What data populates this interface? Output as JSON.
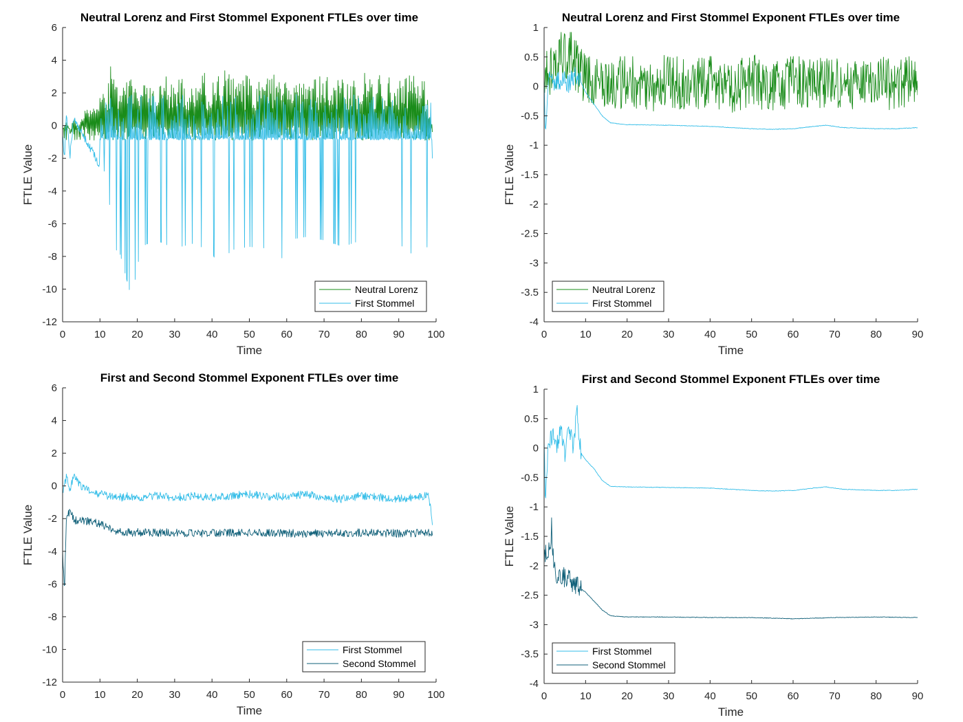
{
  "window": {
    "title": ""
  },
  "colors": {
    "neutral_lorenz": "#1a8c1a",
    "first_stommel": "#33bde8",
    "second_stommel": "#0f5f78",
    "axis": "#262626"
  },
  "chart_data": [
    {
      "type": "line",
      "title": "Neutral Lorenz and First Stommel Exponent FTLEs over time",
      "xlabel": "Time",
      "ylabel": "FTLE Value",
      "xlim": [
        0,
        100
      ],
      "ylim": [
        -12,
        6
      ],
      "xticks": [
        0,
        10,
        20,
        30,
        40,
        50,
        60,
        70,
        80,
        90,
        100
      ],
      "yticks": [
        -12,
        -10,
        -8,
        -6,
        -4,
        -2,
        0,
        2,
        4,
        6
      ],
      "legend_position": "bottom-right",
      "grid": false,
      "series": [
        {
          "name": "Neutral Lorenz",
          "color": "#1a8c1a",
          "x": [
            0,
            1,
            2,
            3,
            4,
            6,
            8,
            10,
            12,
            13.2,
            14,
            16,
            18,
            20,
            22,
            25,
            27,
            30,
            33,
            35,
            38,
            40,
            43,
            46,
            50,
            53,
            56,
            59,
            62,
            64,
            68,
            72,
            76,
            80,
            82.5,
            83,
            86,
            90,
            94,
            97,
            99
          ],
          "y": [
            -0.5,
            0.4,
            -0.6,
            0.7,
            -0.3,
            0.9,
            1.2,
            1.8,
            2.2,
            4.3,
            2.6,
            2.7,
            3.1,
            2.2,
            3.0,
            2.5,
            3.6,
            2.8,
            3.3,
            2.6,
            3.4,
            2.7,
            3.5,
            3.0,
            3.2,
            2.8,
            3.2,
            3.3,
            3.0,
            2.5,
            3.2,
            2.9,
            3.1,
            3.0,
            4.6,
            3.3,
            3.1,
            2.8,
            3.2,
            2.8,
            -0.1
          ]
        },
        {
          "name": "First Stommel",
          "color": "#33bde8",
          "x": [
            0,
            0.3,
            0.5,
            1,
            2,
            3,
            5,
            8,
            10,
            12,
            13.5,
            15,
            18.5,
            21,
            25,
            30,
            35,
            40,
            42,
            45,
            50,
            55,
            58,
            60,
            65,
            70,
            75,
            80,
            85,
            90,
            92,
            95,
            98,
            99
          ],
          "y": [
            -5.2,
            -1.2,
            -2.0,
            0.6,
            -1.8,
            0.5,
            -0.4,
            -1.6,
            -2.5,
            -3.0,
            -7.8,
            -7.5,
            -10.6,
            -7.4,
            -7.0,
            -7.5,
            -7.2,
            -7.7,
            -8.9,
            -7.6,
            -7.4,
            -7.5,
            -8.7,
            -7.0,
            -6.8,
            -7.0,
            -7.4,
            -7.0,
            -7.2,
            -6.6,
            -8.4,
            -7.0,
            -7.5,
            -2.2
          ]
        }
      ]
    },
    {
      "type": "line",
      "title": "Neutral Lorenz and First Stommel Exponent FTLEs over time",
      "xlabel": "Time",
      "ylabel": "FTLE Value",
      "xlim": [
        0,
        90
      ],
      "ylim": [
        -4,
        1
      ],
      "xticks": [
        0,
        10,
        20,
        30,
        40,
        50,
        60,
        70,
        80,
        90
      ],
      "yticks": [
        -4,
        -3.5,
        -3,
        -2.5,
        -2,
        -1.5,
        -1,
        -0.5,
        0,
        0.5,
        1
      ],
      "legend_position": "bottom-left",
      "grid": false,
      "series": [
        {
          "name": "Neutral Lorenz",
          "color": "#1a8c1a",
          "x": [
            0,
            2,
            4,
            6,
            8,
            10,
            15,
            20,
            25,
            30,
            35,
            40,
            42,
            45,
            50,
            55,
            60,
            65,
            70,
            75,
            80,
            85,
            90
          ],
          "y": [
            0.2,
            0.3,
            0.5,
            0.6,
            0.3,
            0.1,
            0.0,
            0.1,
            0.0,
            0.1,
            0.0,
            0.1,
            -0.1,
            0.0,
            0.1,
            0.0,
            0.1,
            0.0,
            0.1,
            0.0,
            0.1,
            0.0,
            0.1
          ]
        },
        {
          "name": "First Stommel",
          "color": "#33bde8",
          "x": [
            0,
            0.3,
            1,
            2,
            4,
            6,
            8,
            9,
            10,
            12,
            14,
            16,
            20,
            30,
            40,
            50,
            55,
            60,
            65,
            68,
            72,
            80,
            85,
            90
          ],
          "y": [
            0.1,
            -0.8,
            0.1,
            0.05,
            0.1,
            0.05,
            0.2,
            0.05,
            -0.1,
            -0.3,
            -0.5,
            -0.62,
            -0.65,
            -0.66,
            -0.68,
            -0.72,
            -0.73,
            -0.72,
            -0.68,
            -0.66,
            -0.7,
            -0.72,
            -0.72,
            -0.7
          ]
        }
      ]
    },
    {
      "type": "line",
      "title": "First and Second Stommel Exponent FTLEs over time",
      "xlabel": "Time",
      "ylabel": "FTLE Value",
      "xlim": [
        0,
        100
      ],
      "ylim": [
        -12,
        6
      ],
      "xticks": [
        0,
        10,
        20,
        30,
        40,
        50,
        60,
        70,
        80,
        90,
        100
      ],
      "yticks": [
        -12,
        -10,
        -8,
        -6,
        -4,
        -2,
        0,
        2,
        4,
        6
      ],
      "legend_position": "bottom-right",
      "grid": false,
      "series": [
        {
          "name": "First Stommel",
          "color": "#33bde8",
          "x": [
            0,
            1,
            2,
            3,
            5,
            8,
            10,
            12,
            14,
            16,
            18,
            20,
            25,
            30,
            35,
            40,
            45,
            50,
            55,
            60,
            65,
            70,
            75,
            80,
            85,
            90,
            95,
            98,
            99
          ],
          "y": [
            -0.5,
            0.5,
            -0.2,
            0.6,
            0.0,
            -0.4,
            -0.5,
            -0.6,
            -0.7,
            -0.7,
            -0.6,
            -0.7,
            -0.6,
            -0.7,
            -0.6,
            -0.7,
            -0.6,
            -0.5,
            -0.7,
            -0.6,
            -0.5,
            -0.7,
            -0.8,
            -0.6,
            -0.7,
            -0.8,
            -0.7,
            -0.6,
            -2.2
          ]
        },
        {
          "name": "Second Stommel",
          "color": "#0f5f78",
          "x": [
            0,
            0.5,
            1,
            2,
            3,
            5,
            8,
            10,
            12,
            15,
            18,
            20,
            30,
            40,
            50,
            60,
            70,
            80,
            90,
            99
          ],
          "y": [
            -4.0,
            -6.5,
            -2.0,
            -1.5,
            -2.1,
            -2.1,
            -2.2,
            -2.3,
            -2.6,
            -2.8,
            -2.85,
            -2.85,
            -2.85,
            -2.9,
            -2.85,
            -2.9,
            -2.9,
            -2.85,
            -2.9,
            -2.85
          ]
        }
      ]
    },
    {
      "type": "line",
      "title": "First and Second Stommel Exponent FTLEs over time",
      "xlabel": "Time",
      "ylabel": "FTLE Value",
      "xlim": [
        0,
        90
      ],
      "ylim": [
        -4,
        1
      ],
      "xticks": [
        0,
        10,
        20,
        30,
        40,
        50,
        60,
        70,
        80,
        90
      ],
      "yticks": [
        -4,
        -3.5,
        -3,
        -2.5,
        -2,
        -1.5,
        -1,
        -0.5,
        0,
        0.5,
        1
      ],
      "legend_position": "bottom-left",
      "grid": false,
      "series": [
        {
          "name": "First Stommel",
          "color": "#33bde8",
          "x": [
            0,
            0.3,
            1,
            2,
            3,
            4,
            5,
            6,
            7,
            8,
            8.5,
            9,
            10,
            12,
            14,
            16,
            20,
            30,
            40,
            50,
            55,
            60,
            65,
            68,
            72,
            80,
            85,
            90
          ],
          "y": [
            0.2,
            -0.8,
            0.1,
            0.2,
            0.0,
            0.3,
            -0.1,
            0.4,
            0.05,
            0.6,
            0.1,
            -0.1,
            -0.2,
            -0.35,
            -0.55,
            -0.65,
            -0.66,
            -0.67,
            -0.68,
            -0.72,
            -0.73,
            -0.72,
            -0.68,
            -0.66,
            -0.7,
            -0.72,
            -0.72,
            -0.7
          ]
        },
        {
          "name": "Second Stommel",
          "color": "#0f5f78",
          "x": [
            0,
            0.5,
            1,
            1.5,
            1.8,
            2.2,
            3,
            5,
            8,
            10,
            12,
            14,
            16,
            20,
            30,
            40,
            50,
            60,
            70,
            80,
            90
          ],
          "y": [
            -1.75,
            -1.8,
            -1.75,
            -1.8,
            -1.3,
            -1.9,
            -2.15,
            -2.2,
            -2.35,
            -2.45,
            -2.6,
            -2.75,
            -2.85,
            -2.87,
            -2.87,
            -2.88,
            -2.88,
            -2.9,
            -2.88,
            -2.87,
            -2.88
          ]
        }
      ]
    }
  ]
}
